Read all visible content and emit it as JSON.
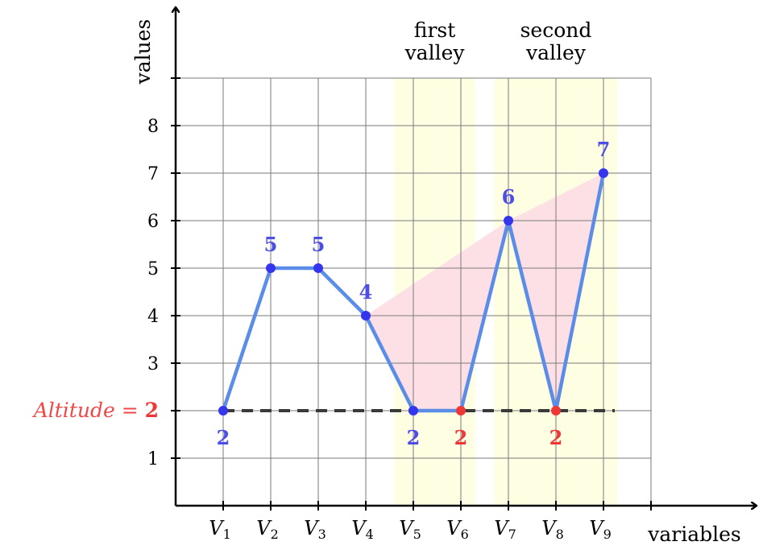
{
  "chart_data": {
    "type": "line",
    "xlabel": "variables",
    "ylabel": "values",
    "categories": [
      {
        "main": "V",
        "sub": "1"
      },
      {
        "main": "V",
        "sub": "2"
      },
      {
        "main": "V",
        "sub": "3"
      },
      {
        "main": "V",
        "sub": "4"
      },
      {
        "main": "V",
        "sub": "5"
      },
      {
        "main": "V",
        "sub": "6"
      },
      {
        "main": "V",
        "sub": "7"
      },
      {
        "main": "V",
        "sub": "8"
      },
      {
        "main": "V",
        "sub": "9"
      }
    ],
    "values": [
      2,
      5,
      5,
      4,
      2,
      2,
      6,
      2,
      7
    ],
    "point_labels": [
      "2",
      "5",
      "5",
      "4",
      "2",
      "2",
      "6",
      "2",
      "7"
    ],
    "highlighted_points": [
      6,
      8
    ],
    "y_ticks": [
      1,
      2,
      3,
      4,
      5,
      6,
      7,
      8
    ],
    "ylim": [
      0,
      9
    ],
    "grid": true,
    "altitude": {
      "label": "Altitude",
      "equals": "=",
      "value": 2
    },
    "bands": [
      {
        "title_line1": "first",
        "title_line2": "valley",
        "from": 4.6,
        "to": 6.3
      },
      {
        "title_line1": "second",
        "title_line2": "valley",
        "from": 6.7,
        "to": 9.3
      }
    ],
    "shaded_region_points": [
      4,
      5,
      6,
      7,
      8,
      9
    ]
  },
  "colors": {
    "line": "#5b8de8",
    "point": "#3535ee",
    "label_blue": "#4d4de8",
    "highlight": "#ee3838",
    "altitude_text": "#ee4848",
    "band_fill": "#fefee2",
    "region_fill": "#fde0e5",
    "grid": "#7a7a7a",
    "dashed": "#3a3a3a",
    "axis": "#000000"
  }
}
